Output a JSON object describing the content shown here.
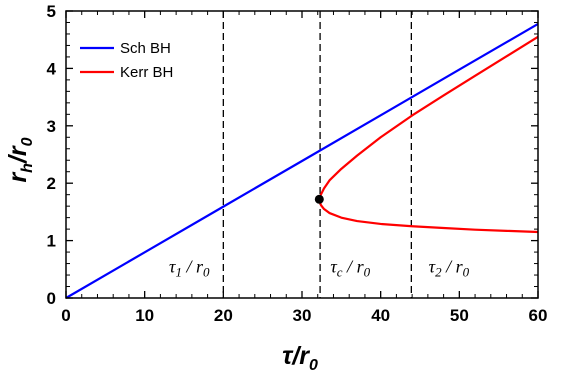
{
  "chart_data": {
    "type": "line",
    "title": "",
    "xlabel": {
      "main": "τ",
      "slash": "/",
      "base": "r",
      "sub": "0"
    },
    "ylabel": {
      "main": "r",
      "main_sub": "h",
      "slash": "/",
      "base": "r",
      "sub": "0"
    },
    "xlim": [
      0,
      60
    ],
    "ylim": [
      0,
      5
    ],
    "x_ticks": [
      0,
      10,
      20,
      30,
      40,
      50,
      60
    ],
    "y_ticks": [
      0,
      1,
      2,
      3,
      4,
      5
    ],
    "grid": false,
    "legend_placement": "top-left",
    "series": [
      {
        "name": "Sch BH",
        "color": "#0000ff",
        "x": [
          0,
          10,
          20,
          30,
          40,
          50,
          60
        ],
        "y": [
          0,
          0.796,
          1.592,
          2.387,
          3.183,
          3.979,
          4.775
        ]
      },
      {
        "name": "Kerr BH",
        "color": "#ff0000",
        "x": [
          60.0,
          56.0,
          52.0,
          48.0,
          44.0,
          40.0,
          37.0,
          35.0,
          33.5,
          32.8,
          32.4,
          32.2,
          32.4,
          32.8,
          33.5,
          35.0,
          37.0,
          40.0,
          44.0,
          48.0,
          52.0,
          56.0,
          60.0
        ],
        "y": [
          4.55,
          4.21,
          3.87,
          3.53,
          3.18,
          2.8,
          2.48,
          2.25,
          2.05,
          1.91,
          1.8,
          1.72,
          1.62,
          1.55,
          1.48,
          1.4,
          1.34,
          1.29,
          1.25,
          1.22,
          1.19,
          1.17,
          1.15
        ]
      }
    ],
    "critical_point": {
      "x": 32.2,
      "y": 1.72
    },
    "vlines": [
      {
        "x": 20.0,
        "label": {
          "main": "τ",
          "sub": "1",
          "slash": " / ",
          "base": "r",
          "base_sub": "0"
        },
        "label_x": 13.1,
        "label_y": 0.55
      },
      {
        "x": 32.3,
        "label": {
          "main": "τ",
          "sub": "c",
          "slash": " / ",
          "base": "r",
          "base_sub": "0"
        },
        "label_x": 33.6,
        "label_y": 0.55
      },
      {
        "x": 43.9,
        "label": {
          "main": "τ",
          "sub": "2",
          "slash": " / ",
          "base": "r",
          "base_sub": "0"
        },
        "label_x": 46.1,
        "label_y": 0.55
      }
    ]
  }
}
